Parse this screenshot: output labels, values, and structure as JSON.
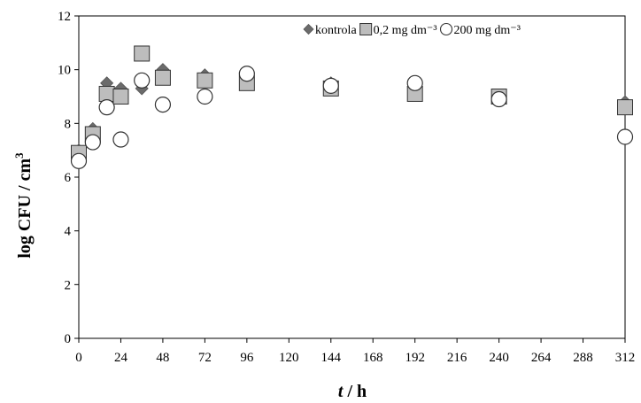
{
  "chart_data": {
    "type": "scatter",
    "xlabel_italic": "t",
    "xlabel_rest": " / h",
    "ylabel": "log CFU / cm",
    "ylabel_sup": "3",
    "xlim": [
      0,
      312
    ],
    "ylim": [
      0,
      12
    ],
    "xticks": [
      0,
      24,
      48,
      72,
      96,
      120,
      144,
      168,
      192,
      216,
      240,
      264,
      288,
      312
    ],
    "yticks": [
      0,
      2,
      4,
      6,
      8,
      10,
      12
    ],
    "grid": false,
    "legend_position": "top-right",
    "series": [
      {
        "name": "kontrola",
        "marker": "diamond",
        "color": "#6b6b6b",
        "points": [
          [
            0,
            7.0
          ],
          [
            8,
            7.8
          ],
          [
            16,
            9.5
          ],
          [
            24,
            9.3
          ],
          [
            36,
            9.3
          ],
          [
            48,
            10.0
          ],
          [
            72,
            9.8
          ],
          [
            96,
            9.6
          ],
          [
            144,
            9.5
          ],
          [
            192,
            9.2
          ],
          [
            240,
            9.0
          ],
          [
            312,
            8.8
          ]
        ]
      },
      {
        "name": "0,2 mg dm⁻³",
        "marker": "square",
        "color": "#bdbdbd",
        "points": [
          [
            0,
            6.9
          ],
          [
            8,
            7.6
          ],
          [
            16,
            9.1
          ],
          [
            24,
            9.0
          ],
          [
            36,
            10.6
          ],
          [
            48,
            9.7
          ],
          [
            72,
            9.6
          ],
          [
            96,
            9.5
          ],
          [
            144,
            9.3
          ],
          [
            192,
            9.1
          ],
          [
            240,
            9.0
          ],
          [
            312,
            8.6
          ]
        ]
      },
      {
        "name": "200 mg dm⁻³",
        "marker": "circle",
        "color": "#ffffff",
        "points": [
          [
            0,
            6.6
          ],
          [
            8,
            7.3
          ],
          [
            16,
            8.6
          ],
          [
            24,
            7.4
          ],
          [
            36,
            9.6
          ],
          [
            48,
            8.7
          ],
          [
            72,
            9.0
          ],
          [
            96,
            9.85
          ],
          [
            144,
            9.4
          ],
          [
            192,
            9.5
          ],
          [
            240,
            8.9
          ],
          [
            312,
            7.5
          ]
        ]
      }
    ]
  }
}
